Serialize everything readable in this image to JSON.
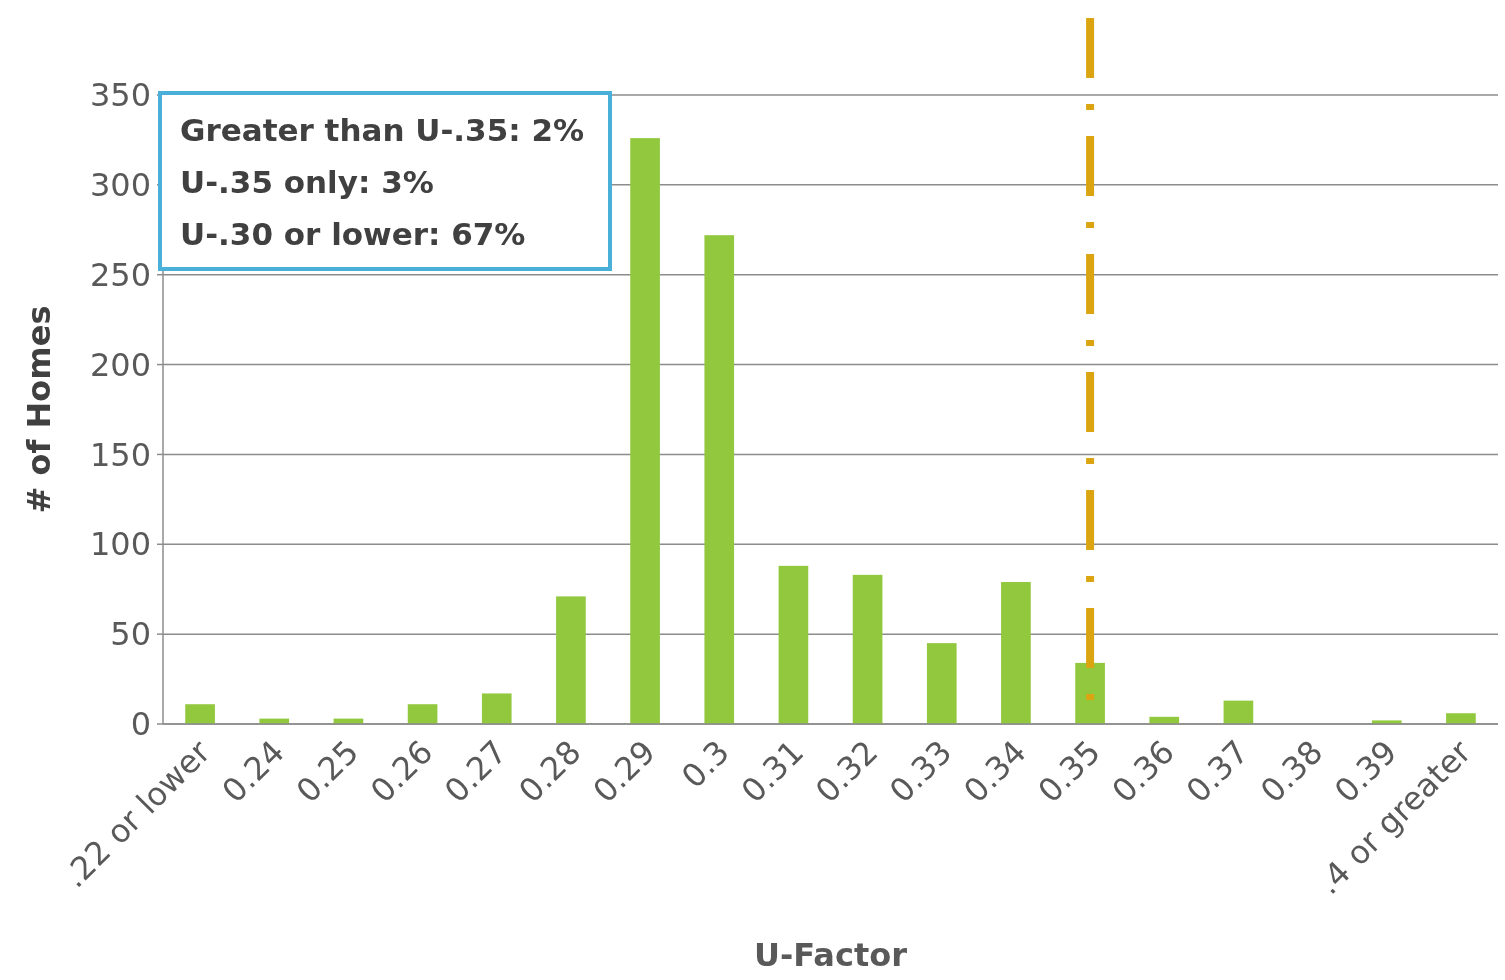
{
  "chart_data": {
    "type": "bar",
    "xlabel": "U-Factor",
    "ylabel": "# of Homes",
    "categories": [
      ".22 or lower",
      "0.24",
      "0.25",
      "0.26",
      "0.27",
      "0.28",
      "0.29",
      "0.3",
      "0.31",
      "0.32",
      "0.33",
      "0.34",
      "0.35",
      "0.36",
      "0.37",
      "0.38",
      "0.39",
      ".4 or greater"
    ],
    "values": [
      11,
      3,
      3,
      11,
      17,
      71,
      326,
      272,
      88,
      83,
      45,
      79,
      34,
      4,
      13,
      0,
      2,
      6
    ],
    "color": "#92c83e",
    "ylim": [
      0,
      350
    ],
    "yticks": [
      0,
      50,
      100,
      150,
      200,
      250,
      300,
      350
    ],
    "grid": "y",
    "ref_lines": [
      {
        "axis": "x",
        "value": "0.35",
        "color": "#daa511",
        "line_style": "dashdot"
      }
    ],
    "annotations": [
      "Greater than U-.35: 2%\nU-.35 only: 3%\nU-.30 or lower: 67%"
    ]
  }
}
